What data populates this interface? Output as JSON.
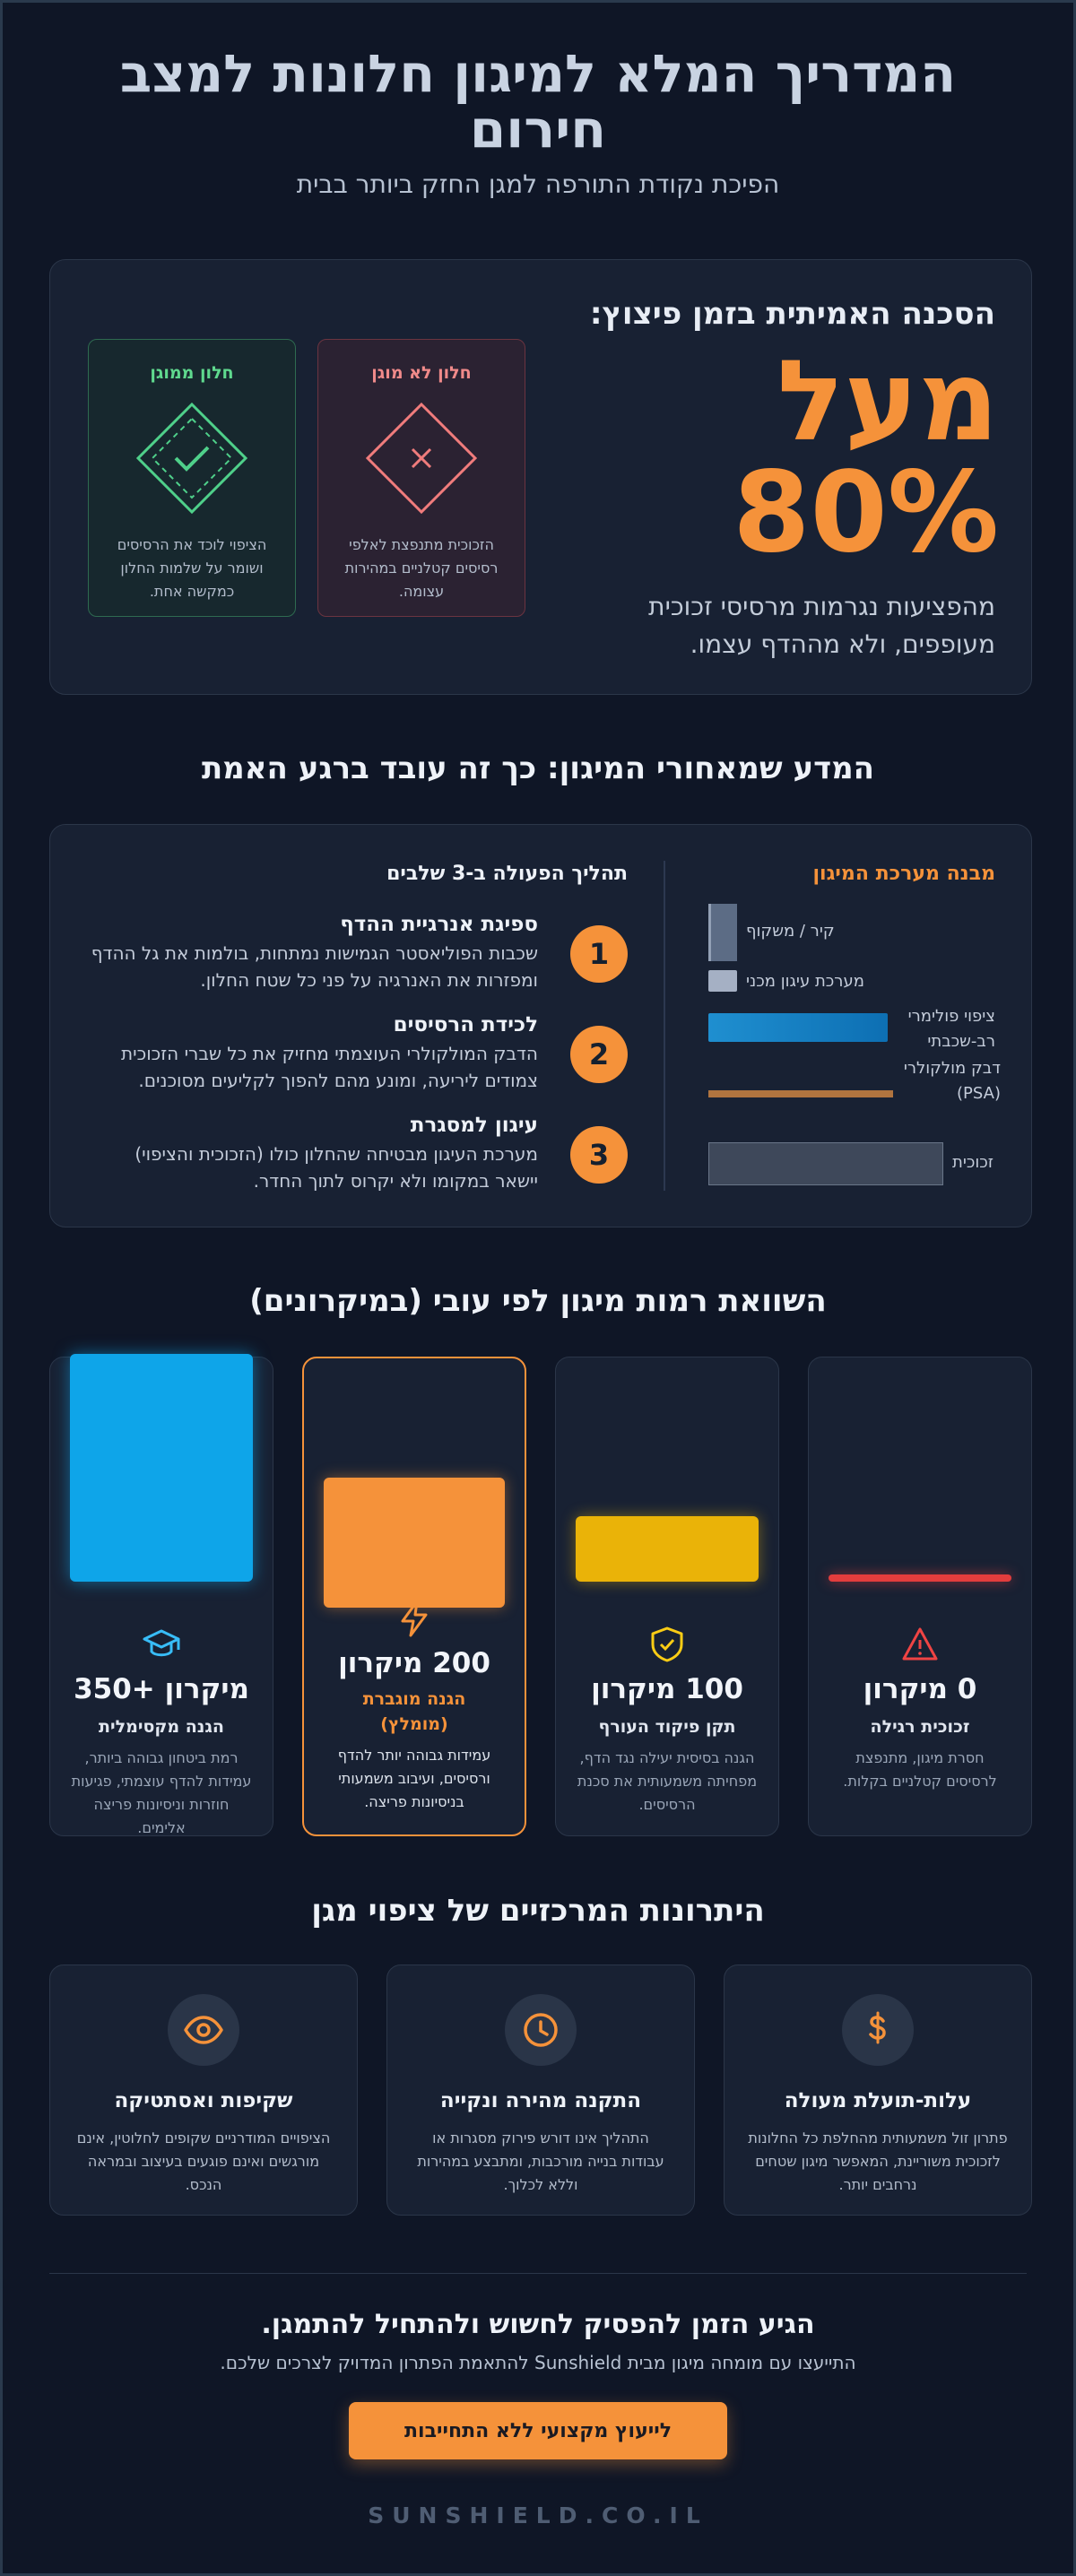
{
  "header": {
    "title": "המדריך המלא למיגון חלונות למצב חירום",
    "subtitle": "הפיכת נקודת התורפה למגן החזק ביותר בבית"
  },
  "danger": {
    "heading": "הסכנה האמיתית בזמן פיצוץ:",
    "stat_prefix": "מעל",
    "stat_value": "80%",
    "description": "מהפציעות נגרמות מרסיסי זכוכית מעופפים, ולא מההדף עצמו.",
    "unprotected": {
      "title": "חלון לא מוגן",
      "text": "הזכוכית מתנפצת לאלפי רסיסים קטלניים במהירות עצומה.",
      "color": "#f08a8a"
    },
    "protected": {
      "title": "חלון ממוגן",
      "text": "הציפוי לוכד את הרסיסים ושומר על שלמות החלון כמקשה אחת.",
      "color": "#5fd98e"
    }
  },
  "science": {
    "title": "המדע שמאחורי המיגון: כך זה עובד ברגע האמת",
    "structure_heading": "מבנה מערכת המיגון",
    "layers": [
      {
        "label": "קיר / משקוף"
      },
      {
        "label": "מערכת עיגון מכני"
      },
      {
        "label": "ציפוי פולימרי רב-שכבתי"
      },
      {
        "label": "דבק מולקולרי (PSA)"
      },
      {
        "label": "זכוכית"
      }
    ],
    "process_heading": "תהליך הפעולה ב-3 שלבים",
    "steps": [
      {
        "num": "1",
        "title": "ספיגת אנרגיית ההדף",
        "text": "שכבות הפוליאסטר הגמישות נמתחות, בולמות את גל ההדף ומפזרות את האנרגיה על פני כל שטח החלון."
      },
      {
        "num": "2",
        "title": "לכידת הרסיסים",
        "text": "הדבק המולקולרי העוצמתי מחזיק את כל שברי הזכוכית צמודים ליריעה, ומונע מהם להפוך לקליעים מסוכנים."
      },
      {
        "num": "3",
        "title": "עיגון למסגרת",
        "text": "מערכת העיגון מבטיחה שהחלון כולו (הזכוכית והציפוי) יישאר במקומו ולא יקרוס לתוך החדר."
      }
    ]
  },
  "comparison": {
    "title": "השוואת רמות מיגון לפי עובי (במיקרונים)",
    "levels": [
      {
        "value": "0 מיקרון",
        "microns": 0,
        "name": "זכוכית רגילה",
        "desc": "חסרת מיגון, מתנפצת לרסיסים קטלניים בקלות.",
        "color": "#e33d3d",
        "icon": "warning-icon"
      },
      {
        "value": "100 מיקרון",
        "microns": 100,
        "name": "תקן פיקוד העורף",
        "desc": "הגנה בסיסית יעילה נגד הדף, מפחיתה משמעותית את סכנת הרסיסים.",
        "color": "#eab308",
        "icon": "shield-check-icon"
      },
      {
        "value": "200 מיקרון",
        "microns": 200,
        "name": "הגנה מוגברת (מומלץ)",
        "desc": "עמידות גבוהה יותר להדף ורסיסים, ועיבוב משמעותי בניסיונות פריצה.",
        "color": "#f5923a",
        "icon": "lightning-icon"
      },
      {
        "value": "350+ מיקרון",
        "microns": 350,
        "name": "הגנה מקסימלית",
        "desc": "רמת ביטחון גבוהה ביותר, עמידות להדף עוצמתי, פגיעות חוזרות וניסיונות פריצה אלימים.",
        "color": "#0ea5e9",
        "icon": "graduation-cap-icon"
      }
    ]
  },
  "advantages": {
    "title": "היתרונות המרכזיים של ציפוי מגן",
    "items": [
      {
        "title": "עלות-תועלת מעולה",
        "text": "פתרון זול משמעותית מהחלפת כל החלונות לזכוכית משוריינת, המאפשר מיגון שטחים נרחבים יותר.",
        "icon": "dollar-icon"
      },
      {
        "title": "התקנה מהירה ונקייה",
        "text": "התהליך אינו דורש פירוק מסגרות או עבודות בנייה מורכבות, ומתבצע במהירות וללא לכלוך.",
        "icon": "clock-icon"
      },
      {
        "title": "שקיפות ואסתטיקה",
        "text": "הציפויים המודרניים שקופים לחלוטין, אינם מורגשים ואינם פוגעים בעיצוב ובמראה הנכס.",
        "icon": "eye-icon"
      }
    ]
  },
  "cta": {
    "title": "הגיע הזמן להפסיק לחשוש ולהתחיל להתמגן.",
    "subtitle": "התייעצו עם מומחה מיגון מבית Sunshield להתאמת הפתרון המדויק לצרכים שלכם.",
    "button": "לייעוץ מקצועי ללא התחייבות"
  },
  "footer": {
    "brand": "SUNSHIELD.CO.IL"
  },
  "colors": {
    "accent": "#f5923a",
    "background": "#0f1626",
    "card": "#182133"
  }
}
